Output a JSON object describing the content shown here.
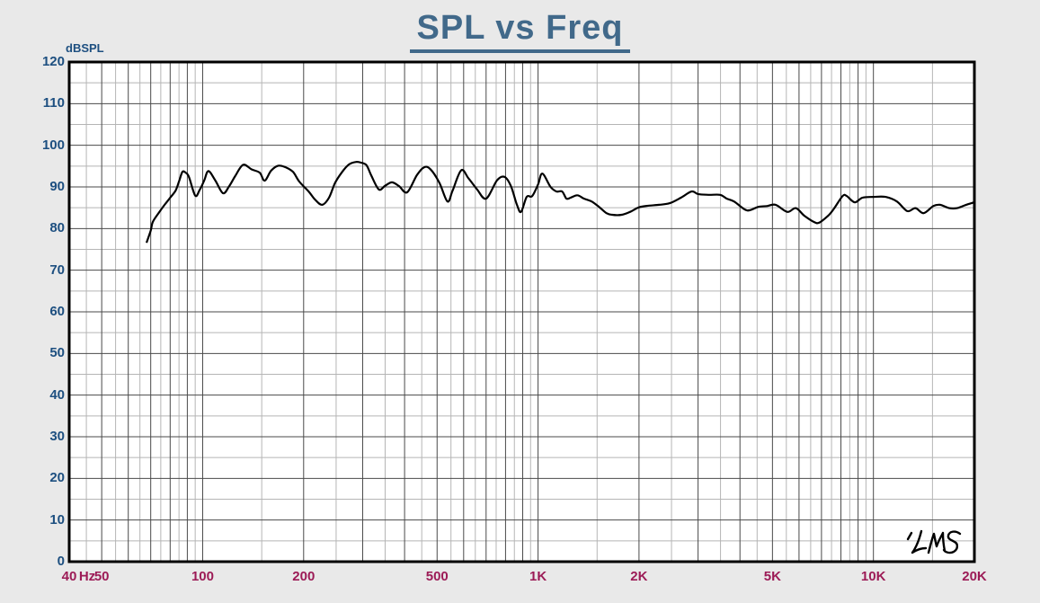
{
  "title": "SPL vs Freq",
  "logo": "LMS",
  "colors": {
    "background": "#e9e9e9",
    "plot_background": "#ffffff",
    "title": "#41698a",
    "y_labels": "#1d4f80",
    "x_labels": "#9c1b56",
    "grid_major": "#4a4a4a",
    "grid_minor": "#b5b5b5",
    "frame": "#000000",
    "curve": "#000000"
  },
  "chart_data": {
    "type": "line",
    "title": "SPL vs Freq",
    "xlabel": "Hz",
    "ylabel": "dBSPL",
    "x_scale": "log",
    "xlim": [
      40,
      20000
    ],
    "ylim": [
      0,
      120
    ],
    "y_tick_step": 10,
    "y_minor_step": 5,
    "grid": "on",
    "legend": "none",
    "watermark": "LMS",
    "y_ticks": [
      "0",
      "10",
      "20",
      "30",
      "40",
      "50",
      "60",
      "70",
      "80",
      "90",
      "100",
      "110",
      "120"
    ],
    "x_ticks": [
      {
        "label": "40",
        "f": 40
      },
      {
        "label": "50",
        "f": 50
      },
      {
        "label": "100",
        "f": 100
      },
      {
        "label": "200",
        "f": 200
      },
      {
        "label": "500",
        "f": 500
      },
      {
        "label": "1K",
        "f": 1000
      },
      {
        "label": "2K",
        "f": 2000
      },
      {
        "label": "5K",
        "f": 5000
      },
      {
        "label": "10K",
        "f": 10000
      },
      {
        "label": "20K",
        "f": 20000
      }
    ],
    "series": [
      {
        "name": "SPL",
        "color": "#000000",
        "points": [
          [
            68,
            76.6
          ],
          [
            70,
            79.5
          ],
          [
            71,
            81.6
          ],
          [
            74,
            83.8
          ],
          [
            77,
            85.7
          ],
          [
            80,
            87.4
          ],
          [
            83,
            89.1
          ],
          [
            85,
            91.3
          ],
          [
            87,
            93.6
          ],
          [
            89,
            93.4
          ],
          [
            91,
            92.4
          ],
          [
            95,
            87.9
          ],
          [
            98,
            89.3
          ],
          [
            101,
            91.5
          ],
          [
            104,
            93.8
          ],
          [
            109,
            91.6
          ],
          [
            115,
            88.5
          ],
          [
            120,
            90.2
          ],
          [
            125,
            92.6
          ],
          [
            132,
            95.3
          ],
          [
            140,
            94.2
          ],
          [
            148,
            93.4
          ],
          [
            153,
            91.5
          ],
          [
            160,
            93.9
          ],
          [
            168,
            95.1
          ],
          [
            177,
            94.7
          ],
          [
            186,
            93.6
          ],
          [
            194,
            91.3
          ],
          [
            207,
            88.9
          ],
          [
            216,
            87.0
          ],
          [
            227,
            85.7
          ],
          [
            238,
            87.4
          ],
          [
            248,
            90.9
          ],
          [
            260,
            93.5
          ],
          [
            273,
            95.4
          ],
          [
            287,
            96.0
          ],
          [
            297,
            95.8
          ],
          [
            308,
            95.2
          ],
          [
            318,
            92.8
          ],
          [
            335,
            89.4
          ],
          [
            350,
            90.3
          ],
          [
            367,
            91.1
          ],
          [
            385,
            90.2
          ],
          [
            407,
            88.7
          ],
          [
            435,
            92.8
          ],
          [
            457,
            94.7
          ],
          [
            477,
            94.3
          ],
          [
            508,
            91.0
          ],
          [
            537,
            86.5
          ],
          [
            556,
            89.1
          ],
          [
            590,
            94.0
          ],
          [
            620,
            92.1
          ],
          [
            658,
            89.4
          ],
          [
            700,
            87.2
          ],
          [
            755,
            91.6
          ],
          [
            795,
            92.4
          ],
          [
            830,
            90.2
          ],
          [
            865,
            85.7
          ],
          [
            890,
            84.0
          ],
          [
            925,
            87.6
          ],
          [
            960,
            87.8
          ],
          [
            1000,
            90.6
          ],
          [
            1030,
            93.2
          ],
          [
            1090,
            90.0
          ],
          [
            1135,
            88.9
          ],
          [
            1180,
            88.9
          ],
          [
            1215,
            87.2
          ],
          [
            1250,
            87.4
          ],
          [
            1310,
            88.0
          ],
          [
            1370,
            87.2
          ],
          [
            1445,
            86.5
          ],
          [
            1520,
            85.2
          ],
          [
            1600,
            83.7
          ],
          [
            1665,
            83.3
          ],
          [
            1775,
            83.3
          ],
          [
            1880,
            84.0
          ],
          [
            2000,
            85.1
          ],
          [
            2145,
            85.5
          ],
          [
            2295,
            85.7
          ],
          [
            2470,
            86.1
          ],
          [
            2665,
            87.4
          ],
          [
            2870,
            88.9
          ],
          [
            3000,
            88.3
          ],
          [
            3220,
            88.1
          ],
          [
            3490,
            88.1
          ],
          [
            3650,
            87.2
          ],
          [
            3840,
            86.5
          ],
          [
            4130,
            84.6
          ],
          [
            4280,
            84.4
          ],
          [
            4540,
            85.2
          ],
          [
            4820,
            85.4
          ],
          [
            5110,
            85.7
          ],
          [
            5540,
            84.0
          ],
          [
            5870,
            84.9
          ],
          [
            6220,
            83.1
          ],
          [
            6640,
            81.6
          ],
          [
            6890,
            81.4
          ],
          [
            7330,
            83.1
          ],
          [
            7600,
            84.6
          ],
          [
            8090,
            87.8
          ],
          [
            8330,
            87.8
          ],
          [
            8790,
            86.3
          ],
          [
            9270,
            87.4
          ],
          [
            9990,
            87.6
          ],
          [
            10870,
            87.6
          ],
          [
            11750,
            86.5
          ],
          [
            12610,
            84.2
          ],
          [
            13350,
            84.9
          ],
          [
            14110,
            83.7
          ],
          [
            15080,
            85.4
          ],
          [
            15800,
            85.7
          ],
          [
            16820,
            84.9
          ],
          [
            17770,
            84.9
          ],
          [
            18900,
            85.7
          ],
          [
            20000,
            86.3
          ]
        ]
      }
    ]
  }
}
